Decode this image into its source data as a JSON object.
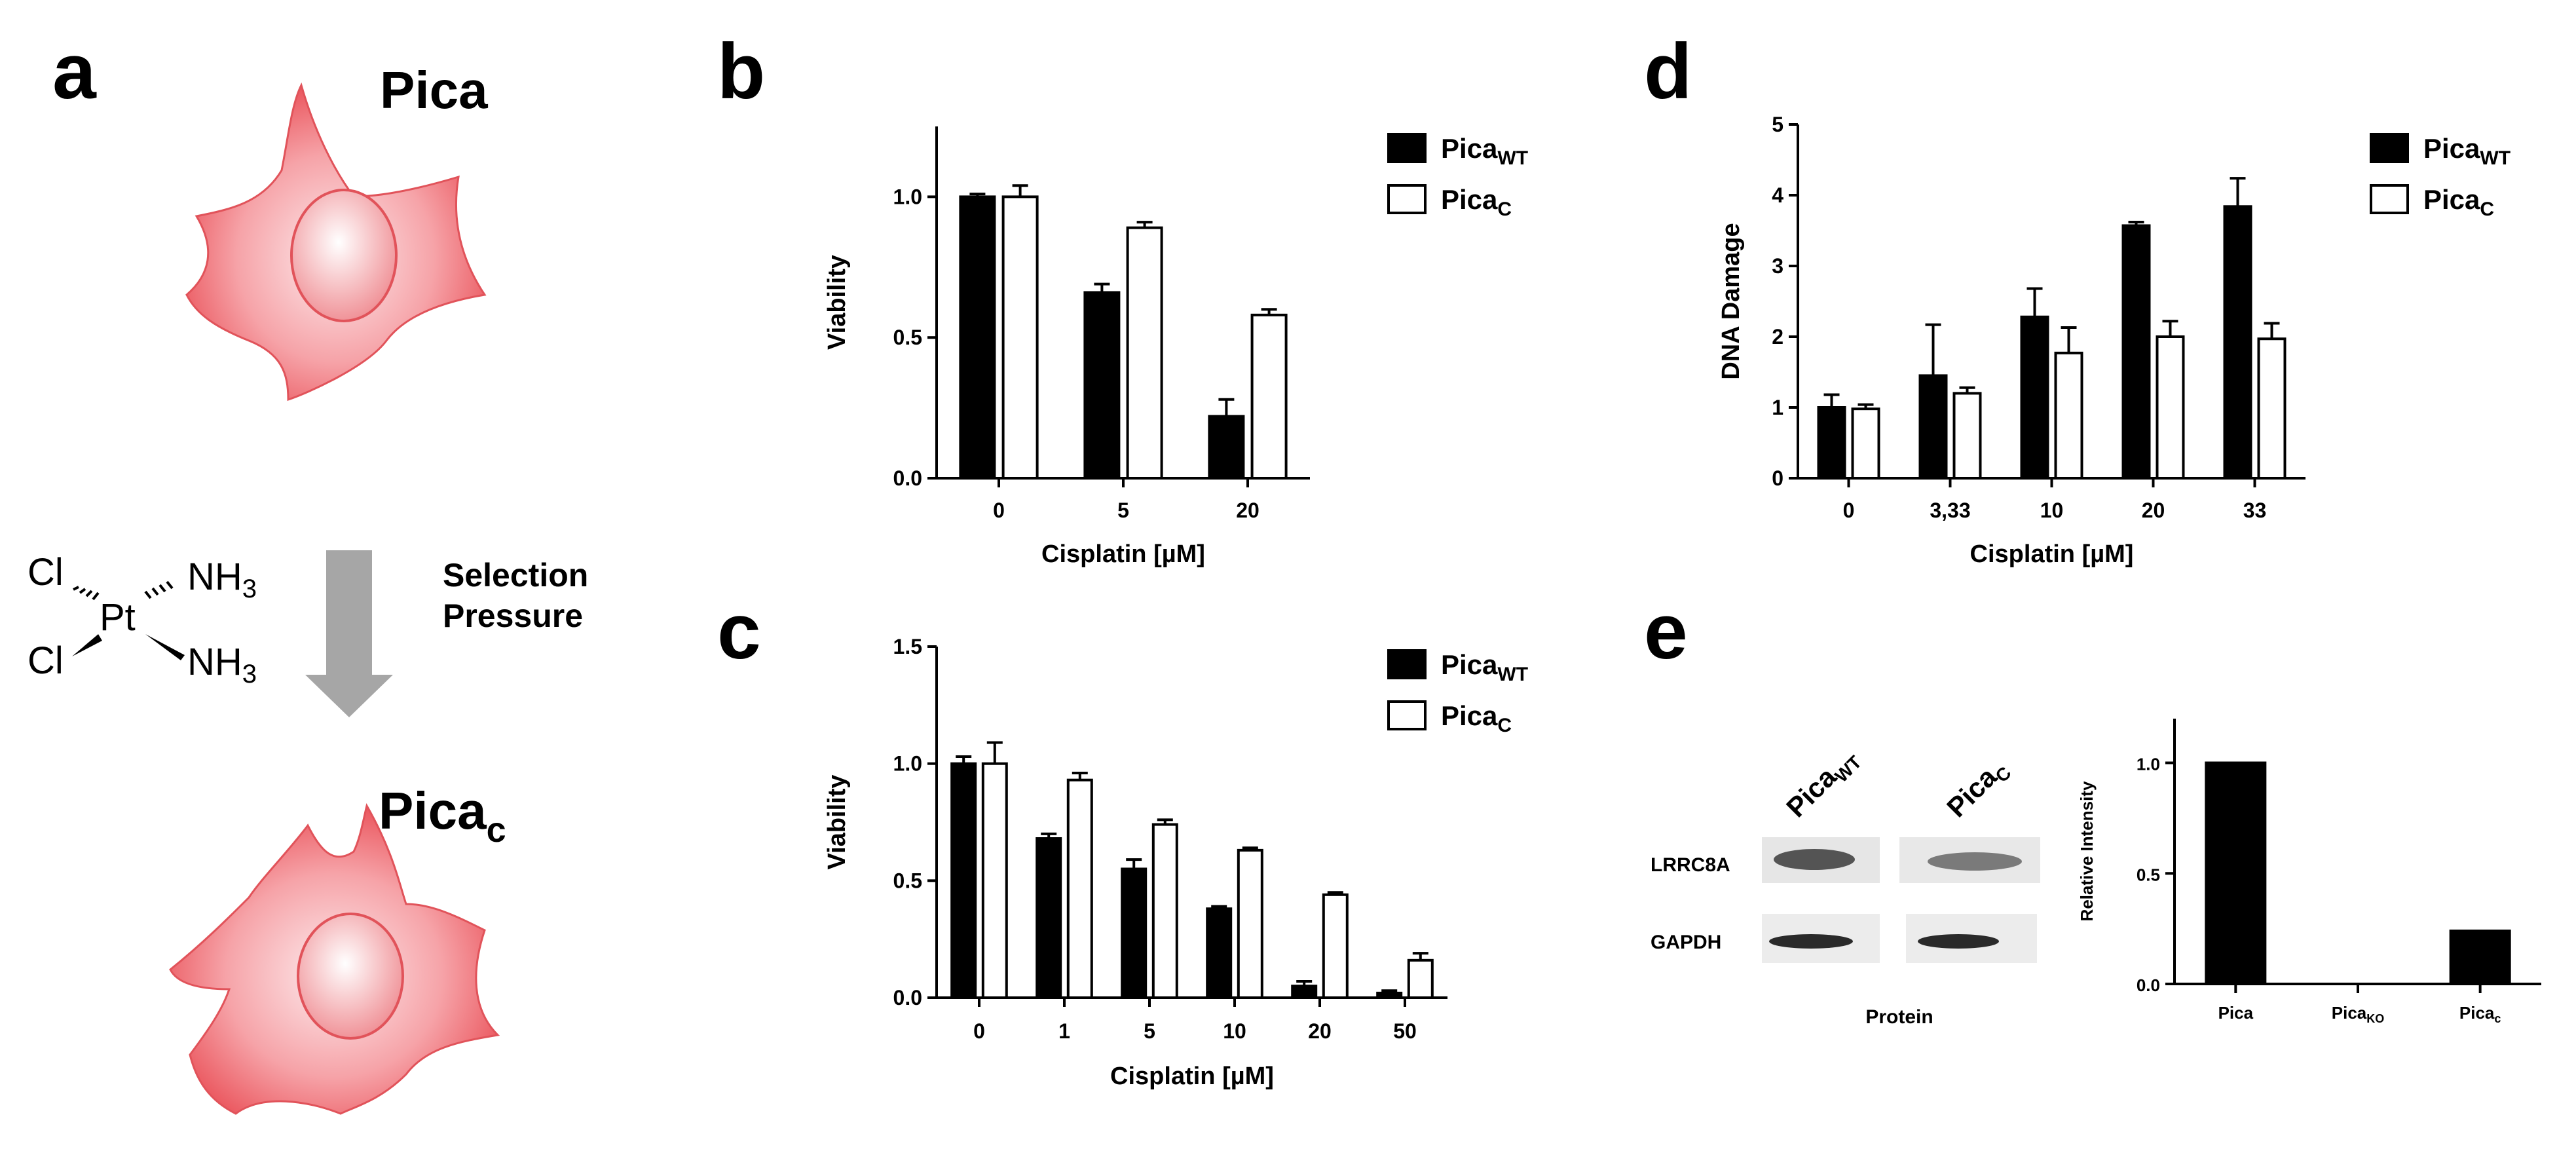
{
  "panels": {
    "a": {
      "letter": "a",
      "cell_top_label": "Pica",
      "cell_bottom_label_main": "Pica",
      "cell_bottom_label_sub": "c",
      "chem": {
        "cl1": "Cl",
        "cl2": "Cl",
        "pt": "Pt",
        "nh1": "NH",
        "nh1_sub": "3",
        "nh2": "NH",
        "nh2_sub": "3"
      },
      "selection_line1": "Selection",
      "selection_line2": "Pressure"
    },
    "b": {
      "letter": "b"
    },
    "c": {
      "letter": "c"
    },
    "d": {
      "letter": "d"
    },
    "e": {
      "letter": "e",
      "lane1_main": "Pica",
      "lane1_sub": "WT",
      "lane2_main": "Pica",
      "lane2_sub": "C",
      "band1_label": "LRRC8A",
      "band2_label": "GAPDH",
      "blot_xlabel": "Protein"
    }
  },
  "colors": {
    "wt_fill": "#000000",
    "c_fill": "#ffffff",
    "cell_dark": "#e8474f",
    "cell_light": "#fbd2d4",
    "arrow": "#a6a6a6"
  },
  "chart_data": [
    {
      "id": "b",
      "type": "bar",
      "categories": [
        "0",
        "5",
        "20"
      ],
      "series": [
        {
          "name_main": "Pica",
          "name_sub": "WT",
          "values": [
            1.0,
            0.66,
            0.22
          ],
          "errors": [
            0.01,
            0.03,
            0.06
          ]
        },
        {
          "name_main": "Pica",
          "name_sub": "C",
          "values": [
            1.0,
            0.89,
            0.58
          ],
          "errors": [
            0.04,
            0.02,
            0.02
          ]
        }
      ],
      "xlabel": "Cisplatin [µM]",
      "ylabel": "Viability",
      "ylim": [
        0,
        1.25
      ],
      "yticks": [
        0.0,
        0.5,
        1.0
      ],
      "ytick_labels": [
        "0.0",
        "0.5",
        "1.0"
      ],
      "legend": "top-right"
    },
    {
      "id": "c",
      "type": "bar",
      "categories": [
        "0",
        "1",
        "5",
        "10",
        "20",
        "50"
      ],
      "series": [
        {
          "name_main": "Pica",
          "name_sub": "WT",
          "values": [
            1.0,
            0.68,
            0.55,
            0.38,
            0.05,
            0.02
          ],
          "errors": [
            0.03,
            0.02,
            0.04,
            0.01,
            0.02,
            0.01
          ]
        },
        {
          "name_main": "Pica",
          "name_sub": "C",
          "values": [
            1.0,
            0.93,
            0.74,
            0.63,
            0.44,
            0.16
          ],
          "errors": [
            0.09,
            0.03,
            0.02,
            0.01,
            0.01,
            0.03
          ]
        }
      ],
      "xlabel": "Cisplatin [µM]",
      "ylabel": "Viability",
      "ylim": [
        0,
        1.5
      ],
      "yticks": [
        0.0,
        0.5,
        1.0,
        1.5
      ],
      "ytick_labels": [
        "0.0",
        "0.5",
        "1.0",
        "1.5"
      ],
      "legend": "top-right"
    },
    {
      "id": "d",
      "type": "bar",
      "categories": [
        "0",
        "3,33",
        "10",
        "20",
        "33"
      ],
      "series": [
        {
          "name_main": "Pica",
          "name_sub": "WT",
          "values": [
            1.0,
            1.45,
            2.28,
            3.57,
            3.84
          ],
          "errors": [
            0.18,
            0.72,
            0.4,
            0.05,
            0.4
          ]
        },
        {
          "name_main": "Pica",
          "name_sub": "C",
          "values": [
            0.98,
            1.2,
            1.77,
            2.0,
            1.97
          ],
          "errors": [
            0.06,
            0.08,
            0.36,
            0.22,
            0.22
          ]
        }
      ],
      "xlabel": "Cisplatin [µM]",
      "ylabel": "DNA Damage",
      "ylim": [
        0,
        5
      ],
      "yticks": [
        0,
        1,
        2,
        3,
        4,
        5
      ],
      "ytick_labels": [
        "0",
        "1",
        "2",
        "3",
        "4",
        "5"
      ],
      "legend": "top-right"
    },
    {
      "id": "e",
      "type": "bar",
      "categories": [
        {
          "main": "Pica",
          "sub": ""
        },
        {
          "main": "Pica",
          "sub": "KO"
        },
        {
          "main": "Pica",
          "sub": "c"
        }
      ],
      "series": [
        {
          "values": [
            1.0,
            0.0,
            0.24
          ]
        }
      ],
      "xlabel": "",
      "ylabel": "Relative  Intensity",
      "ylim": [
        0,
        1.2
      ],
      "yticks": [
        0.0,
        0.5,
        1.0
      ],
      "ytick_labels": [
        "0.0",
        "0.5",
        "1.0"
      ]
    }
  ]
}
